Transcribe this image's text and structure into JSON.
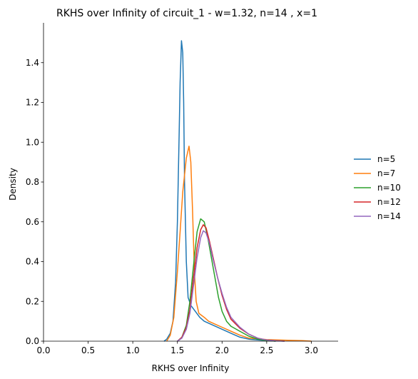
{
  "chart_data": {
    "type": "line",
    "title": "RKHS over Infinity of circuit_1 - w=1.32, n=14 , x=1",
    "xlabel": "RKHS over Infinity",
    "ylabel": "Density",
    "xlim": [
      0.0,
      3.3
    ],
    "ylim": [
      0.0,
      1.6
    ],
    "xticks": [
      "0.0",
      "0.5",
      "1.0",
      "1.5",
      "2.0",
      "2.5",
      "3.0"
    ],
    "yticks": [
      "0.0",
      "0.2",
      "0.4",
      "0.6",
      "0.8",
      "1.0",
      "1.2",
      "1.4"
    ],
    "xtick_values": [
      0.0,
      0.5,
      1.0,
      1.5,
      2.0,
      2.5,
      3.0
    ],
    "ytick_values": [
      0.0,
      0.2,
      0.4,
      0.6,
      0.8,
      1.0,
      1.2,
      1.4
    ],
    "grid": false,
    "legend_position": "right",
    "series": [
      {
        "name": "n=5",
        "color": "#1f77b4",
        "points": [
          [
            1.35,
            0
          ],
          [
            1.38,
            0.01
          ],
          [
            1.42,
            0.04
          ],
          [
            1.45,
            0.1
          ],
          [
            1.48,
            0.3
          ],
          [
            1.5,
            0.6
          ],
          [
            1.52,
            1.05
          ],
          [
            1.53,
            1.3
          ],
          [
            1.545,
            1.51
          ],
          [
            1.56,
            1.45
          ],
          [
            1.57,
            1.2
          ],
          [
            1.58,
            0.8
          ],
          [
            1.6,
            0.4
          ],
          [
            1.62,
            0.22
          ],
          [
            1.65,
            0.18
          ],
          [
            1.7,
            0.15
          ],
          [
            1.75,
            0.12
          ],
          [
            1.8,
            0.1
          ],
          [
            1.9,
            0.08
          ],
          [
            2.0,
            0.06
          ],
          [
            2.1,
            0.04
          ],
          [
            2.2,
            0.02
          ],
          [
            2.3,
            0.01
          ],
          [
            2.5,
            0.003
          ],
          [
            2.6,
            0
          ]
        ]
      },
      {
        "name": "n=7",
        "color": "#ff7f0e",
        "points": [
          [
            1.38,
            0
          ],
          [
            1.42,
            0.03
          ],
          [
            1.46,
            0.12
          ],
          [
            1.5,
            0.35
          ],
          [
            1.53,
            0.55
          ],
          [
            1.56,
            0.75
          ],
          [
            1.6,
            0.92
          ],
          [
            1.63,
            0.98
          ],
          [
            1.65,
            0.9
          ],
          [
            1.67,
            0.65
          ],
          [
            1.69,
            0.35
          ],
          [
            1.71,
            0.2
          ],
          [
            1.74,
            0.14
          ],
          [
            1.8,
            0.12
          ],
          [
            1.85,
            0.1
          ],
          [
            1.9,
            0.09
          ],
          [
            2.0,
            0.07
          ],
          [
            2.1,
            0.05
          ],
          [
            2.2,
            0.03
          ],
          [
            2.3,
            0.015
          ],
          [
            2.5,
            0.008
          ],
          [
            2.7,
            0.005
          ],
          [
            2.9,
            0.003
          ],
          [
            3.0,
            0
          ]
        ]
      },
      {
        "name": "n=10",
        "color": "#2ca02c",
        "points": [
          [
            1.5,
            0
          ],
          [
            1.55,
            0.02
          ],
          [
            1.6,
            0.08
          ],
          [
            1.64,
            0.2
          ],
          [
            1.68,
            0.38
          ],
          [
            1.72,
            0.55
          ],
          [
            1.76,
            0.615
          ],
          [
            1.8,
            0.6
          ],
          [
            1.84,
            0.52
          ],
          [
            1.88,
            0.42
          ],
          [
            1.92,
            0.32
          ],
          [
            1.96,
            0.22
          ],
          [
            2.0,
            0.15
          ],
          [
            2.05,
            0.1
          ],
          [
            2.1,
            0.075
          ],
          [
            2.2,
            0.05
          ],
          [
            2.3,
            0.025
          ],
          [
            2.4,
            0.01
          ],
          [
            2.5,
            0.004
          ],
          [
            2.6,
            0
          ]
        ]
      },
      {
        "name": "n=12",
        "color": "#d62728",
        "points": [
          [
            1.5,
            0
          ],
          [
            1.55,
            0.02
          ],
          [
            1.6,
            0.07
          ],
          [
            1.64,
            0.16
          ],
          [
            1.68,
            0.32
          ],
          [
            1.72,
            0.47
          ],
          [
            1.76,
            0.56
          ],
          [
            1.79,
            0.585
          ],
          [
            1.82,
            0.57
          ],
          [
            1.86,
            0.5
          ],
          [
            1.9,
            0.42
          ],
          [
            1.95,
            0.32
          ],
          [
            2.0,
            0.23
          ],
          [
            2.05,
            0.16
          ],
          [
            2.1,
            0.11
          ],
          [
            2.2,
            0.065
          ],
          [
            2.3,
            0.035
          ],
          [
            2.4,
            0.015
          ],
          [
            2.5,
            0.006
          ],
          [
            2.6,
            0.002
          ],
          [
            2.7,
            0
          ]
        ]
      },
      {
        "name": "n=14",
        "color": "#9467bd",
        "points": [
          [
            1.5,
            0
          ],
          [
            1.55,
            0.015
          ],
          [
            1.6,
            0.06
          ],
          [
            1.64,
            0.14
          ],
          [
            1.68,
            0.28
          ],
          [
            1.72,
            0.42
          ],
          [
            1.76,
            0.52
          ],
          [
            1.79,
            0.555
          ],
          [
            1.82,
            0.545
          ],
          [
            1.86,
            0.49
          ],
          [
            1.9,
            0.41
          ],
          [
            1.95,
            0.32
          ],
          [
            2.0,
            0.24
          ],
          [
            2.05,
            0.17
          ],
          [
            2.1,
            0.12
          ],
          [
            2.2,
            0.07
          ],
          [
            2.3,
            0.035
          ],
          [
            2.4,
            0.015
          ],
          [
            2.5,
            0.006
          ],
          [
            2.6,
            0.002
          ],
          [
            2.7,
            0
          ]
        ]
      }
    ]
  }
}
